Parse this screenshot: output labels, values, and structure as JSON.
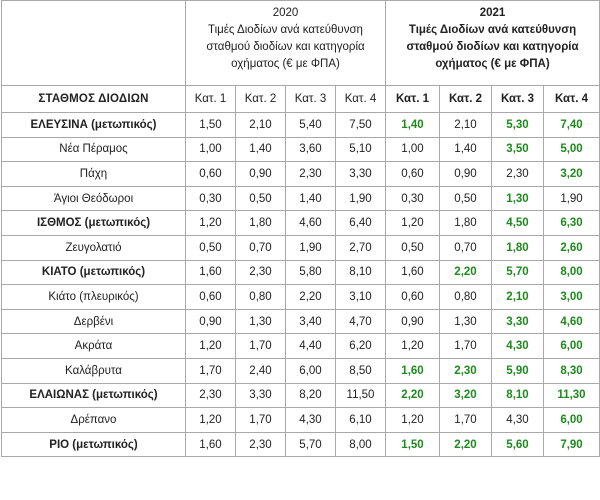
{
  "header": {
    "col2020": {
      "year": "2020",
      "desc": "Τιμές Διοδίων ανά κατεύθυνση σταθμού διοδίων και κατηγορία οχήματος (€ με ΦΠΑ)"
    },
    "col2021": {
      "year": "2021",
      "desc": "Τιμές Διοδίων ανά κατεύθυνση σταθμού διοδίων και κατηγορία οχήματος (€ με ΦΠΑ)"
    }
  },
  "columns": {
    "station": "ΣΤΑΘΜΟΣ ΔΙΟΔΙΩΝ",
    "cats2020": [
      "Κατ. 1",
      "Κατ. 2",
      "Κατ. 3",
      "Κατ. 4"
    ],
    "cats2021": [
      "Κατ. 1",
      "Κατ. 2",
      "Κατ. 3",
      "Κατ. 4"
    ]
  },
  "colors": {
    "increase": "#1e8a1e",
    "text": "#222222",
    "border": "#a8a8a8"
  },
  "rows": [
    {
      "name": "ΕΛΕΥΣΙΝΑ (μετωπικός)",
      "bold": true,
      "v2020": [
        "1,50",
        "2,10",
        "5,40",
        "7,50"
      ],
      "v2021": [
        "1,40",
        "2,10",
        "5,30",
        "7,40"
      ],
      "g2021": [
        true,
        false,
        true,
        true
      ]
    },
    {
      "name": "Νέα Πέραμος",
      "bold": false,
      "v2020": [
        "1,00",
        "1,40",
        "3,60",
        "5,10"
      ],
      "v2021": [
        "1,00",
        "1,40",
        "3,50",
        "5,00"
      ],
      "g2021": [
        false,
        false,
        true,
        true
      ]
    },
    {
      "name": "Πάχη",
      "bold": false,
      "v2020": [
        "0,60",
        "0,90",
        "2,30",
        "3,30"
      ],
      "v2021": [
        "0,60",
        "0,90",
        "2,30",
        "3,20"
      ],
      "g2021": [
        false,
        false,
        false,
        true
      ]
    },
    {
      "name": "Άγιοι Θεόδωροι",
      "bold": false,
      "v2020": [
        "0,30",
        "0,50",
        "1,40",
        "1,90"
      ],
      "v2021": [
        "0,30",
        "0,50",
        "1,30",
        "1,90"
      ],
      "g2021": [
        false,
        false,
        true,
        false
      ]
    },
    {
      "name": "ΙΣΘΜΟΣ (μετωπικός)",
      "bold": true,
      "v2020": [
        "1,20",
        "1,80",
        "4,60",
        "6,40"
      ],
      "v2021": [
        "1,20",
        "1,80",
        "4,50",
        "6,30"
      ],
      "g2021": [
        false,
        false,
        true,
        true
      ]
    },
    {
      "name": "Ζευγολατιό",
      "bold": false,
      "v2020": [
        "0,50",
        "0,70",
        "1,90",
        "2,70"
      ],
      "v2021": [
        "0,50",
        "0,70",
        "1,80",
        "2,60"
      ],
      "g2021": [
        false,
        false,
        true,
        true
      ]
    },
    {
      "name": "ΚΙΑΤΟ (μετωπικός)",
      "bold": true,
      "v2020": [
        "1,60",
        "2,30",
        "5,80",
        "8,10"
      ],
      "v2021": [
        "1,60",
        "2,20",
        "5,70",
        "8,00"
      ],
      "g2021": [
        false,
        true,
        true,
        true
      ]
    },
    {
      "name": "Κιάτο (πλευρικός)",
      "bold": false,
      "v2020": [
        "0,60",
        "0,80",
        "2,20",
        "3,10"
      ],
      "v2021": [
        "0,60",
        "0,80",
        "2,10",
        "3,00"
      ],
      "g2021": [
        false,
        false,
        true,
        true
      ]
    },
    {
      "name": "Δερβένι",
      "bold": false,
      "v2020": [
        "0,90",
        "1,30",
        "3,40",
        "4,70"
      ],
      "v2021": [
        "0,90",
        "1,30",
        "3,30",
        "4,60"
      ],
      "g2021": [
        false,
        false,
        true,
        true
      ]
    },
    {
      "name": "Ακράτα",
      "bold": false,
      "v2020": [
        "1,20",
        "1,70",
        "4,40",
        "6,20"
      ],
      "v2021": [
        "1,20",
        "1,70",
        "4,30",
        "6,00"
      ],
      "g2021": [
        false,
        false,
        true,
        true
      ]
    },
    {
      "name": "Καλάβρυτα",
      "bold": false,
      "v2020": [
        "1,70",
        "2,40",
        "6,00",
        "8,50"
      ],
      "v2021": [
        "1,60",
        "2,30",
        "5,90",
        "8,30"
      ],
      "g2021": [
        true,
        true,
        true,
        true
      ]
    },
    {
      "name": "ΕΛΑΙΩΝΑΣ (μετωπικός)",
      "bold": true,
      "v2020": [
        "2,30",
        "3,30",
        "8,20",
        "11,50"
      ],
      "v2021": [
        "2,20",
        "3,20",
        "8,10",
        "11,30"
      ],
      "g2021": [
        true,
        true,
        true,
        true
      ]
    },
    {
      "name": "Δρέπανο",
      "bold": false,
      "v2020": [
        "1,20",
        "1,70",
        "4,30",
        "6,10"
      ],
      "v2021": [
        "1,20",
        "1,70",
        "4,30",
        "6,00"
      ],
      "g2021": [
        false,
        false,
        false,
        true
      ]
    },
    {
      "name": "ΡΙΟ (μετωπικός)",
      "bold": true,
      "v2020": [
        "1,60",
        "2,30",
        "5,70",
        "8,00"
      ],
      "v2021": [
        "1,50",
        "2,20",
        "5,60",
        "7,90"
      ],
      "g2021": [
        true,
        true,
        true,
        true
      ]
    }
  ]
}
